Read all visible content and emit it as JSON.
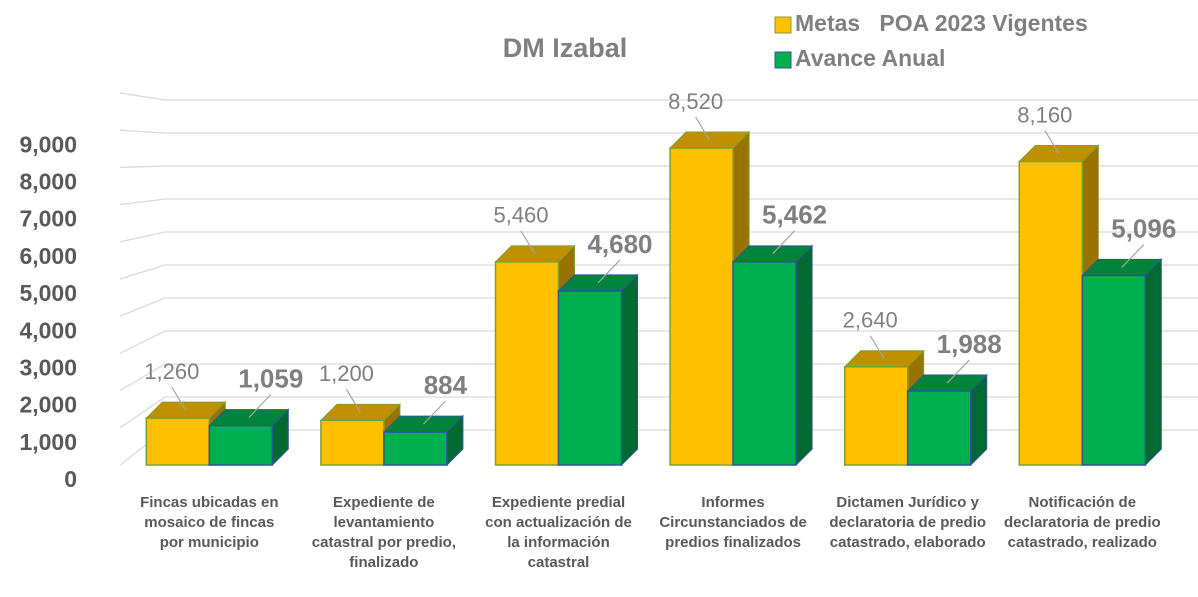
{
  "chart_data": {
    "type": "bar3d",
    "title": "DM Izabal",
    "categories": [
      "Fincas ubicadas en mosaico de fincas por municipio",
      "Expediente de levantamiento catastral por predio, finalizado",
      "Expediente predial con actualización de la información catastral",
      "Informes Circunstanciados de predios finalizados",
      "Dictamen Jurídico y declaratoria de predio catastrado, elaborado",
      "Notificación de declaratoria de predio catastrado, realizado"
    ],
    "series": [
      {
        "name": "Metas   POA 2023 Vigentes",
        "color": "#FFC000",
        "values": [
          1260,
          1200,
          5460,
          8520,
          2640,
          8160
        ],
        "value_labels": [
          "1,260",
          "1,200",
          "5,460",
          "8,520",
          "2,640",
          "8,160"
        ]
      },
      {
        "name": "Avance Anual",
        "color": "#00B050",
        "values": [
          1059,
          884,
          4680,
          5462,
          1988,
          5096
        ],
        "value_labels": [
          "1,059",
          "884",
          "4,680",
          "5,462",
          "1,988",
          "5,096"
        ]
      }
    ],
    "ylim": [
      0,
      10000
    ],
    "yticks": [
      0,
      {
        "value": 1000,
        "label": "1,000"
      },
      {
        "value": 2000,
        "label": "2,000"
      },
      {
        "value": 3000,
        "label": "3,000"
      },
      {
        "value": 4000,
        "label": "4,000"
      },
      {
        "value": 5000,
        "label": "5,000"
      },
      {
        "value": 6000,
        "label": "6,000"
      },
      {
        "value": 7000,
        "label": "7,000"
      },
      {
        "value": 8000,
        "label": "8,000"
      },
      {
        "value": 9000,
        "label": "9,000"
      }
    ],
    "grid": true,
    "legend": "top-right"
  }
}
